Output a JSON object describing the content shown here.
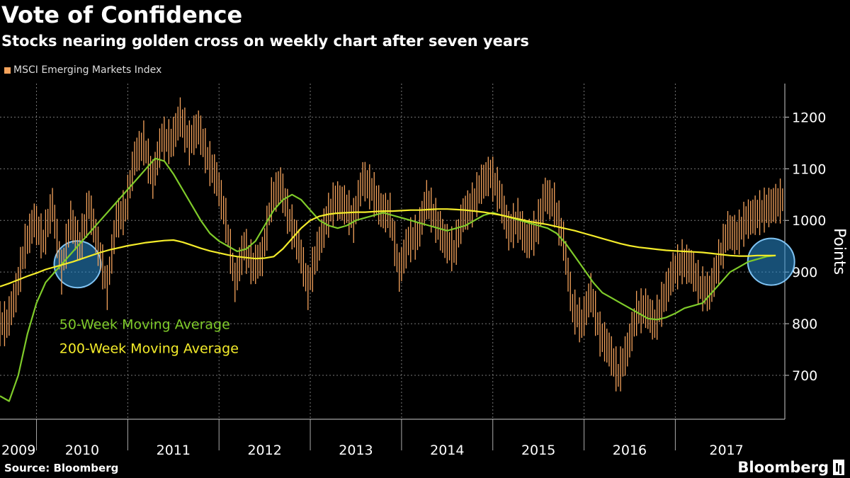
{
  "header": {
    "title": "Vote of Confidence",
    "subtitle": "Stocks nearing golden cross on weekly chart after seven years"
  },
  "legend": {
    "label": "MSCI Emerging Markets Index"
  },
  "footer": {
    "source": "Source: Bloomberg",
    "brand": "Bloomberg"
  },
  "colors": {
    "price": "#f5a35c",
    "ma50": "#7fcb2a",
    "ma200": "#f4ec2a",
    "highlight_fill": "#2a8fd6",
    "highlight_stroke": "#7fc3f3",
    "grid": "#777777"
  },
  "chart_data": {
    "type": "line",
    "title": "Vote of Confidence",
    "subtitle": "Stocks nearing golden cross on weekly chart after seven years",
    "ylabel": "Points",
    "xlabel": "",
    "ylim": [
      615,
      1265
    ],
    "xlim": [
      2009.0,
      2017.6
    ],
    "yticks": [
      700,
      800,
      900,
      1000,
      1100,
      1200
    ],
    "xtick_labels": [
      "2009",
      "2010",
      "2011",
      "2012",
      "2013",
      "2014",
      "2015",
      "2016",
      "2017"
    ],
    "x_dividers": [
      2009.4,
      2010.4,
      2011.4,
      2012.4,
      2013.4,
      2014.4,
      2015.4,
      2016.4
    ],
    "grid": true,
    "legend_position": "top-left",
    "series": [
      {
        "name": "MSCI Emerging Markets Index",
        "role": "price",
        "x": [
          2009.0,
          2009.1,
          2009.2,
          2009.3,
          2009.4,
          2009.5,
          2009.6,
          2009.7,
          2009.8,
          2009.9,
          2010.0,
          2010.1,
          2010.2,
          2010.3,
          2010.4,
          2010.5,
          2010.6,
          2010.7,
          2010.8,
          2010.9,
          2011.0,
          2011.1,
          2011.2,
          2011.3,
          2011.4,
          2011.5,
          2011.6,
          2011.7,
          2011.8,
          2011.9,
          2012.0,
          2012.1,
          2012.2,
          2012.3,
          2012.4,
          2012.5,
          2012.6,
          2012.7,
          2012.8,
          2012.9,
          2013.0,
          2013.1,
          2013.2,
          2013.3,
          2013.4,
          2013.5,
          2013.6,
          2013.7,
          2013.8,
          2013.9,
          2014.0,
          2014.1,
          2014.2,
          2014.3,
          2014.4,
          2014.5,
          2014.6,
          2014.7,
          2014.8,
          2014.9,
          2015.0,
          2015.1,
          2015.2,
          2015.3,
          2015.4,
          2015.5,
          2015.6,
          2015.7,
          2015.8,
          2015.9,
          2016.0,
          2016.1,
          2016.2,
          2016.3,
          2016.4,
          2016.5,
          2016.6,
          2016.7,
          2016.8,
          2016.9,
          2017.0,
          2017.1,
          2017.2,
          2017.3,
          2017.4,
          2017.5
        ],
        "y": [
          800,
          860,
          950,
          1000,
          960,
          1030,
          900,
          1000,
          950,
          1030,
          950,
          870,
          1000,
          1020,
          1120,
          1150,
          1080,
          1160,
          1150,
          1200,
          1150,
          1180,
          1120,
          1080,
          1000,
          880,
          950,
          910,
          930,
          1040,
          1070,
          1000,
          950,
          870,
          940,
          1000,
          1040,
          1030,
          1000,
          1080,
          1060,
          1020,
          1010,
          900,
          960,
          970,
          1040,
          1000,
          960,
          940,
          1010,
          1030,
          1070,
          1090,
          1050,
          980,
          1000,
          960,
          980,
          1050,
          1030,
          960,
          830,
          800,
          860,
          780,
          750,
          700,
          750,
          820,
          830,
          800,
          850,
          900,
          920,
          910,
          870,
          860,
          920,
          980,
          970,
          1000,
          1010,
          1020,
          1030,
          1040
        ]
      },
      {
        "name": "50-Week Moving Average",
        "role": "ma50",
        "x": [
          2009.0,
          2009.1,
          2009.2,
          2009.3,
          2009.4,
          2009.5,
          2009.6,
          2009.7,
          2009.8,
          2009.9,
          2010.0,
          2010.1,
          2010.2,
          2010.3,
          2010.4,
          2010.5,
          2010.6,
          2010.7,
          2010.8,
          2010.9,
          2011.0,
          2011.1,
          2011.2,
          2011.3,
          2011.4,
          2011.5,
          2011.6,
          2011.7,
          2011.8,
          2011.9,
          2012.0,
          2012.1,
          2012.2,
          2012.3,
          2012.4,
          2012.5,
          2012.6,
          2012.7,
          2012.8,
          2012.9,
          2013.0,
          2013.1,
          2013.2,
          2013.3,
          2013.4,
          2013.5,
          2013.6,
          2013.7,
          2013.8,
          2013.9,
          2014.0,
          2014.1,
          2014.2,
          2014.3,
          2014.4,
          2014.5,
          2014.6,
          2014.7,
          2014.8,
          2014.9,
          2015.0,
          2015.1,
          2015.2,
          2015.3,
          2015.4,
          2015.5,
          2015.6,
          2015.7,
          2015.8,
          2015.9,
          2016.0,
          2016.1,
          2016.2,
          2016.3,
          2016.4,
          2016.5,
          2016.6,
          2016.7,
          2016.8,
          2016.9,
          2017.0,
          2017.1,
          2017.2,
          2017.3,
          2017.4,
          2017.5
        ],
        "y": [
          660,
          650,
          700,
          780,
          840,
          880,
          900,
          920,
          940,
          960,
          980,
          1000,
          1020,
          1040,
          1060,
          1080,
          1100,
          1120,
          1115,
          1090,
          1060,
          1030,
          1000,
          975,
          960,
          950,
          940,
          945,
          960,
          990,
          1020,
          1040,
          1050,
          1040,
          1020,
          1000,
          990,
          985,
          990,
          1000,
          1005,
          1010,
          1015,
          1010,
          1005,
          1000,
          995,
          990,
          985,
          980,
          985,
          990,
          1000,
          1010,
          1015,
          1010,
          1005,
          1000,
          995,
          990,
          985,
          975,
          955,
          930,
          905,
          880,
          860,
          850,
          840,
          830,
          820,
          810,
          808,
          812,
          820,
          830,
          835,
          840,
          860,
          880,
          900,
          910,
          920,
          925,
          930,
          932
        ]
      },
      {
        "name": "200-Week Moving Average",
        "role": "ma200",
        "x": [
          2009.0,
          2009.1,
          2009.2,
          2009.3,
          2009.4,
          2009.5,
          2009.6,
          2009.7,
          2009.8,
          2009.9,
          2010.0,
          2010.1,
          2010.2,
          2010.3,
          2010.4,
          2010.5,
          2010.6,
          2010.7,
          2010.8,
          2010.9,
          2011.0,
          2011.1,
          2011.2,
          2011.3,
          2011.4,
          2011.5,
          2011.6,
          2011.7,
          2011.8,
          2011.9,
          2012.0,
          2012.1,
          2012.2,
          2012.3,
          2012.4,
          2012.5,
          2012.6,
          2012.7,
          2012.8,
          2012.9,
          2013.0,
          2013.1,
          2013.2,
          2013.3,
          2013.4,
          2013.5,
          2013.6,
          2013.7,
          2013.8,
          2013.9,
          2014.0,
          2014.1,
          2014.2,
          2014.3,
          2014.4,
          2014.5,
          2014.6,
          2014.7,
          2014.8,
          2014.9,
          2015.0,
          2015.1,
          2015.2,
          2015.3,
          2015.4,
          2015.5,
          2015.6,
          2015.7,
          2015.8,
          2015.9,
          2016.0,
          2016.1,
          2016.2,
          2016.3,
          2016.4,
          2016.5,
          2016.6,
          2016.7,
          2016.8,
          2016.9,
          2017.0,
          2017.1,
          2017.2,
          2017.3,
          2017.4,
          2017.5
        ],
        "y": [
          872,
          878,
          885,
          892,
          898,
          905,
          910,
          915,
          920,
          926,
          932,
          938,
          943,
          947,
          951,
          954,
          957,
          959,
          961,
          962,
          958,
          952,
          946,
          941,
          937,
          933,
          930,
          928,
          926,
          927,
          930,
          945,
          965,
          985,
          1000,
          1008,
          1012,
          1014,
          1015,
          1016,
          1016,
          1017,
          1018,
          1018,
          1019,
          1020,
          1020,
          1021,
          1022,
          1022,
          1021,
          1020,
          1018,
          1016,
          1013,
          1010,
          1006,
          1002,
          998,
          995,
          992,
          988,
          984,
          980,
          975,
          970,
          965,
          960,
          955,
          951,
          948,
          946,
          944,
          942,
          941,
          940,
          939,
          938,
          936,
          934,
          932,
          931,
          931,
          932,
          932,
          932
        ]
      }
    ],
    "annotations": [
      {
        "text": "50-Week Moving Average",
        "series": "ma50",
        "x": 2009.65,
        "y": 790
      },
      {
        "text": "200-Week Moving Average",
        "series": "ma200",
        "x": 2009.65,
        "y": 743
      }
    ],
    "highlights": [
      {
        "name": "2010 crossover",
        "x": 2009.85,
        "y": 915
      },
      {
        "name": "2017 crossover",
        "x": 2017.45,
        "y": 920
      }
    ]
  }
}
